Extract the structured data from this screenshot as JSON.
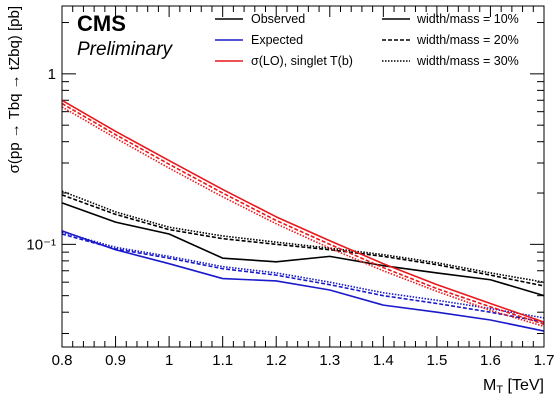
{
  "chart_data": {
    "type": "line",
    "header_text": "",
    "cms": "CMS",
    "preliminary": "Preliminary",
    "xlabel_main": "M",
    "xlabel_sub": "T",
    "xlabel_unit": " [TeV]",
    "ylabel": "σ(pp → Tbq → tZbq) [pb]",
    "xlim": [
      0.8,
      1.7
    ],
    "ylim": [
      0.025,
      2.5
    ],
    "yscale": "log",
    "xticks": [
      0.8,
      0.9,
      1.0,
      1.1,
      1.2,
      1.3,
      1.4,
      1.5,
      1.6,
      1.7
    ],
    "xtick_labels": [
      "0.8",
      "0.9",
      "1",
      "1.1",
      "1.2",
      "1.3",
      "1.4",
      "1.5",
      "1.6",
      "1.7"
    ],
    "yticks_major": [
      0.1,
      1.0
    ],
    "ytick_labels": [
      "10⁻¹",
      "1"
    ],
    "x": [
      0.8,
      0.9,
      1.0,
      1.1,
      1.2,
      1.3,
      1.4,
      1.5,
      1.6,
      1.7
    ],
    "legend": {
      "col1": [
        {
          "label": "Observed",
          "color": "#000000"
        },
        {
          "label": "Expected",
          "color": "#1a1acc"
        },
        {
          "label": "σ(LO), singlet T(b)",
          "color": "#e8191c"
        }
      ],
      "col2": [
        {
          "label": "width/mass = 10%",
          "dash": "solid"
        },
        {
          "label": "width/mass = 20%",
          "dash": "dashed"
        },
        {
          "label": "width/mass = 30%",
          "dash": "dotted"
        }
      ]
    },
    "series": [
      {
        "name": "Observed",
        "width": "10%",
        "color": "#000000",
        "dash": "solid",
        "y": [
          0.175,
          0.135,
          0.115,
          0.083,
          0.079,
          0.085,
          0.075,
          0.068,
          0.062,
          0.05
        ]
      },
      {
        "name": "Observed",
        "width": "20%",
        "color": "#000000",
        "dash": "dashed",
        "y": [
          0.195,
          0.15,
          0.122,
          0.108,
          0.1,
          0.093,
          0.085,
          0.076,
          0.066,
          0.057
        ]
      },
      {
        "name": "Observed",
        "width": "30%",
        "color": "#000000",
        "dash": "dotted",
        "y": [
          0.205,
          0.155,
          0.126,
          0.112,
          0.103,
          0.095,
          0.087,
          0.078,
          0.068,
          0.06
        ]
      },
      {
        "name": "Expected",
        "width": "10%",
        "color": "#1a1acc",
        "dash": "solid",
        "y": [
          0.12,
          0.093,
          0.077,
          0.063,
          0.061,
          0.054,
          0.044,
          0.04,
          0.036,
          0.031
        ]
      },
      {
        "name": "Expected",
        "width": "20%",
        "color": "#1a1acc",
        "dash": "dashed",
        "y": [
          0.115,
          0.094,
          0.083,
          0.072,
          0.066,
          0.058,
          0.05,
          0.045,
          0.04,
          0.035
        ]
      },
      {
        "name": "Expected",
        "width": "30%",
        "color": "#1a1acc",
        "dash": "dotted",
        "y": [
          0.118,
          0.096,
          0.085,
          0.074,
          0.068,
          0.06,
          0.052,
          0.047,
          0.042,
          0.037
        ]
      },
      {
        "name": "σ(LO), singlet T(b)",
        "width": "10%",
        "color": "#e8191c",
        "dash": "solid",
        "y": [
          0.7,
          0.46,
          0.31,
          0.21,
          0.145,
          0.105,
          0.077,
          0.058,
          0.045,
          0.035
        ]
      },
      {
        "name": "σ(LO), singlet T(b)",
        "width": "20%",
        "color": "#e8191c",
        "dash": "dashed",
        "y": [
          0.67,
          0.44,
          0.295,
          0.2,
          0.138,
          0.1,
          0.073,
          0.055,
          0.043,
          0.034
        ]
      },
      {
        "name": "σ(LO), singlet T(b)",
        "width": "30%",
        "color": "#e8191c",
        "dash": "dotted",
        "y": [
          0.64,
          0.42,
          0.28,
          0.19,
          0.132,
          0.095,
          0.07,
          0.053,
          0.041,
          0.033
        ]
      }
    ]
  }
}
